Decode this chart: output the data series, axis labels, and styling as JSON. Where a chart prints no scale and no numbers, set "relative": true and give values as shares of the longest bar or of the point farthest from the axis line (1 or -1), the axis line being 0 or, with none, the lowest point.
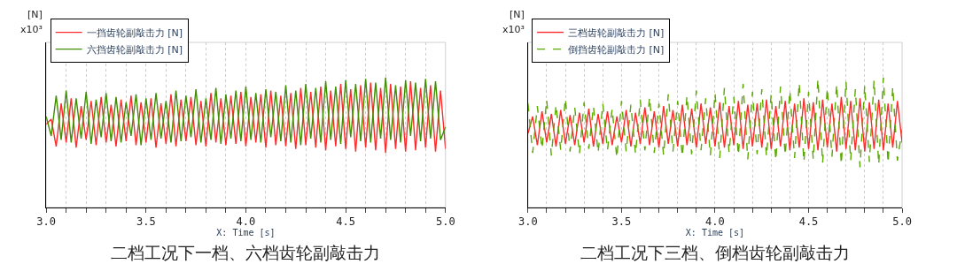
{
  "chart_data": [
    {
      "type": "line",
      "relative": true,
      "title": "二档工况下一档、六档齿轮副敲击力",
      "xlabel": "X: Time [s]",
      "annotations": [
        "[N]",
        "x10³"
      ],
      "xlim": [
        3.0,
        5.0
      ],
      "xticks": [
        {
          "value": 3.0,
          "label": "3.0"
        },
        {
          "value": 3.1,
          "label": null
        },
        {
          "value": 3.2,
          "label": null
        },
        {
          "value": 3.3,
          "label": null
        },
        {
          "value": 3.4,
          "label": null
        },
        {
          "value": 3.5,
          "label": "3.5"
        },
        {
          "value": 3.6,
          "label": null
        },
        {
          "value": 3.7,
          "label": null
        },
        {
          "value": 3.8,
          "label": null
        },
        {
          "value": 3.9,
          "label": null
        },
        {
          "value": 4.0,
          "label": "4.0"
        },
        {
          "value": 4.1,
          "label": null
        },
        {
          "value": 4.2,
          "label": null
        },
        {
          "value": 4.3,
          "label": null
        },
        {
          "value": 4.4,
          "label": null
        },
        {
          "value": 4.5,
          "label": "4.5"
        },
        {
          "value": 4.6,
          "label": null
        },
        {
          "value": 4.7,
          "label": null
        },
        {
          "value": 4.8,
          "label": null
        },
        {
          "value": 4.9,
          "label": null
        },
        {
          "value": 5.0,
          "label": "5.0"
        }
      ],
      "x": [
        3.0,
        3.025,
        3.05,
        3.075,
        3.1,
        3.125,
        3.15,
        3.175,
        3.2,
        3.225,
        3.25,
        3.275,
        3.3,
        3.325,
        3.35,
        3.375,
        3.4,
        3.425,
        3.45,
        3.475,
        3.5,
        3.525,
        3.55,
        3.575,
        3.6,
        3.625,
        3.65,
        3.675,
        3.7,
        3.725,
        3.75,
        3.775,
        3.8,
        3.825,
        3.85,
        3.875,
        3.9,
        3.925,
        3.95,
        3.975,
        4.0,
        4.025,
        4.05,
        4.075,
        4.1,
        4.125,
        4.15,
        4.175,
        4.2,
        4.225,
        4.25,
        4.275,
        4.3,
        4.325,
        4.35,
        4.375,
        4.4,
        4.425,
        4.45,
        4.475,
        4.5,
        4.525,
        4.55,
        4.575,
        4.6,
        4.625,
        4.65,
        4.675,
        4.7,
        4.725,
        4.75,
        4.775,
        4.8,
        4.825,
        4.85,
        4.875,
        4.9,
        4.925,
        4.95,
        4.975,
        5.0
      ],
      "grid": "x",
      "legend": "top left",
      "series": [
        {
          "name": "一挡齿轮副敲击力 [N]",
          "color": "#ff2a2a",
          "values": [
            0.64,
            0.68,
            0.47,
            0.8,
            0.5,
            0.84,
            0.46,
            0.78,
            0.52,
            0.82,
            0.48,
            0.85,
            0.5,
            0.79,
            0.47,
            0.83,
            0.51,
            0.86,
            0.48,
            0.81,
            0.5,
            0.84,
            0.46,
            0.8,
            0.49,
            0.87,
            0.47,
            0.83,
            0.51,
            0.85,
            0.48,
            0.82,
            0.47,
            0.88,
            0.5,
            0.84,
            0.48,
            0.86,
            0.49,
            0.89,
            0.47,
            0.85,
            0.5,
            0.87,
            0.46,
            0.9,
            0.48,
            0.86,
            0.47,
            0.88,
            0.45,
            0.92,
            0.48,
            0.89,
            0.46,
            0.93,
            0.44,
            0.9,
            0.47,
            0.95,
            0.45,
            0.91,
            0.43,
            0.94,
            0.46,
            0.96,
            0.44,
            0.92,
            0.42,
            0.95,
            0.45,
            0.93,
            0.43,
            0.97,
            0.44,
            0.92,
            0.46,
            0.94,
            0.43,
            0.9,
            0.45
          ]
        },
        {
          "name": "六挡齿轮副敲击力 [N]",
          "color": "#3f8f00",
          "values": [
            0.7,
            0.55,
            0.86,
            0.52,
            0.9,
            0.5,
            0.84,
            0.53,
            0.89,
            0.49,
            0.83,
            0.54,
            0.88,
            0.51,
            0.85,
            0.5,
            0.81,
            0.55,
            0.87,
            0.48,
            0.84,
            0.52,
            0.88,
            0.53,
            0.82,
            0.5,
            0.9,
            0.51,
            0.86,
            0.54,
            0.91,
            0.5,
            0.84,
            0.52,
            0.92,
            0.49,
            0.87,
            0.53,
            0.9,
            0.51,
            0.93,
            0.52,
            0.88,
            0.5,
            0.91,
            0.54,
            0.89,
            0.51,
            0.94,
            0.5,
            0.9,
            0.48,
            0.95,
            0.53,
            0.92,
            0.5,
            0.97,
            0.52,
            0.93,
            0.49,
            0.98,
            0.54,
            0.95,
            0.51,
            0.99,
            0.5,
            0.96,
            0.53,
            1.0,
            0.52,
            0.94,
            0.5,
            0.98,
            0.55,
            0.96,
            0.51,
            0.99,
            0.53,
            0.97,
            0.52,
            0.62
          ]
        }
      ]
    },
    {
      "type": "line",
      "relative": true,
      "title": "二档工况下三档、倒档齿轮副敲击力",
      "xlabel": "X: Time [s]",
      "annotations": [
        "[N]",
        "x10³"
      ],
      "xlim": [
        3.0,
        5.0
      ],
      "xticks": [
        {
          "value": 3.0,
          "label": "3.0"
        },
        {
          "value": 3.1,
          "label": null
        },
        {
          "value": 3.2,
          "label": null
        },
        {
          "value": 3.3,
          "label": null
        },
        {
          "value": 3.4,
          "label": null
        },
        {
          "value": 3.5,
          "label": "3.5"
        },
        {
          "value": 3.6,
          "label": null
        },
        {
          "value": 3.7,
          "label": null
        },
        {
          "value": 3.8,
          "label": null
        },
        {
          "value": 3.9,
          "label": null
        },
        {
          "value": 4.0,
          "label": "4.0"
        },
        {
          "value": 4.1,
          "label": null
        },
        {
          "value": 4.2,
          "label": null
        },
        {
          "value": 4.3,
          "label": null
        },
        {
          "value": 4.4,
          "label": null
        },
        {
          "value": 4.5,
          "label": "4.5"
        },
        {
          "value": 4.6,
          "label": null
        },
        {
          "value": 4.7,
          "label": null
        },
        {
          "value": 4.8,
          "label": null
        },
        {
          "value": 4.9,
          "label": null
        },
        {
          "value": 5.0,
          "label": "5.0"
        }
      ],
      "x": [
        3.0,
        3.025,
        3.05,
        3.075,
        3.1,
        3.125,
        3.15,
        3.175,
        3.2,
        3.225,
        3.25,
        3.275,
        3.3,
        3.325,
        3.35,
        3.375,
        3.4,
        3.425,
        3.45,
        3.475,
        3.5,
        3.525,
        3.55,
        3.575,
        3.6,
        3.625,
        3.65,
        3.675,
        3.7,
        3.725,
        3.75,
        3.775,
        3.8,
        3.825,
        3.85,
        3.875,
        3.9,
        3.925,
        3.95,
        3.975,
        4.0,
        4.025,
        4.05,
        4.075,
        4.1,
        4.125,
        4.15,
        4.175,
        4.2,
        4.225,
        4.25,
        4.275,
        4.3,
        4.325,
        4.35,
        4.375,
        4.4,
        4.425,
        4.45,
        4.475,
        4.5,
        4.525,
        4.55,
        4.575,
        4.6,
        4.625,
        4.65,
        4.675,
        4.7,
        4.725,
        4.75,
        4.775,
        4.8,
        4.825,
        4.85,
        4.875,
        4.9,
        4.925,
        4.95,
        4.975,
        5.0
      ],
      "grid": "x",
      "legend": "top left",
      "series": [
        {
          "name": "三档齿轮副敲击力 [N]",
          "color": "#ff2a2a",
          "line_style": "solid",
          "values": [
            0.57,
            0.7,
            0.48,
            0.74,
            0.5,
            0.72,
            0.47,
            0.75,
            0.49,
            0.71,
            0.48,
            0.73,
            0.5,
            0.76,
            0.47,
            0.72,
            0.49,
            0.74,
            0.48,
            0.7,
            0.5,
            0.75,
            0.47,
            0.73,
            0.49,
            0.77,
            0.48,
            0.74,
            0.46,
            0.78,
            0.49,
            0.75,
            0.47,
            0.79,
            0.48,
            0.76,
            0.46,
            0.8,
            0.49,
            0.77,
            0.47,
            0.81,
            0.46,
            0.78,
            0.48,
            0.82,
            0.45,
            0.79,
            0.47,
            0.8,
            0.46,
            0.83,
            0.45,
            0.78,
            0.47,
            0.82,
            0.44,
            0.8,
            0.46,
            0.84,
            0.45,
            0.81,
            0.44,
            0.83,
            0.46,
            0.8,
            0.43,
            0.85,
            0.45,
            0.82,
            0.44,
            0.84,
            0.43,
            0.81,
            0.45,
            0.83,
            0.44,
            0.8,
            0.46,
            0.82,
            0.5
          ]
        },
        {
          "name": "倒挡齿轮副敲击力 [N]",
          "color": "#5aa800",
          "line_style": "dashed",
          "values": [
            0.8,
            0.42,
            0.78,
            0.45,
            0.83,
            0.4,
            0.79,
            0.44,
            0.84,
            0.43,
            0.77,
            0.41,
            0.81,
            0.45,
            0.78,
            0.42,
            0.8,
            0.44,
            0.76,
            0.38,
            0.82,
            0.43,
            0.79,
            0.41,
            0.83,
            0.44,
            0.85,
            0.42,
            0.8,
            0.4,
            0.87,
            0.43,
            0.82,
            0.39,
            0.86,
            0.41,
            0.9,
            0.44,
            0.84,
            0.4,
            0.88,
            0.38,
            0.92,
            0.42,
            0.85,
            0.4,
            0.95,
            0.37,
            0.89,
            0.41,
            0.91,
            0.39,
            0.87,
            0.36,
            0.93,
            0.4,
            0.9,
            0.38,
            0.96,
            0.35,
            0.89,
            0.37,
            0.99,
            0.34,
            0.92,
            0.39,
            0.95,
            0.33,
            0.97,
            0.36,
            0.91,
            0.31,
            0.94,
            0.35,
            0.98,
            0.33,
            1.0,
            0.34,
            0.93,
            0.36,
            0.6
          ]
        }
      ]
    }
  ]
}
